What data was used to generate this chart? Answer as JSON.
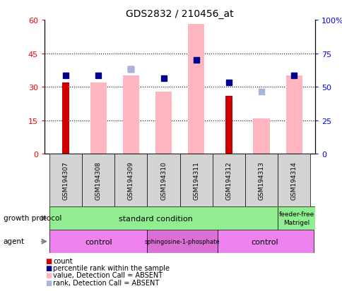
{
  "title": "GDS2832 / 210456_at",
  "samples": [
    "GSM194307",
    "GSM194308",
    "GSM194309",
    "GSM194310",
    "GSM194311",
    "GSM194312",
    "GSM194313",
    "GSM194314"
  ],
  "count_values": [
    32,
    null,
    null,
    null,
    null,
    26,
    null,
    null
  ],
  "pink_bar_values": [
    null,
    32,
    35,
    28,
    58,
    null,
    16,
    35
  ],
  "blue_square_values": [
    35,
    35,
    38,
    34,
    42,
    32,
    null,
    35
  ],
  "light_blue_square_values": [
    null,
    null,
    38,
    null,
    null,
    null,
    28,
    null
  ],
  "ylim_left": [
    0,
    60
  ],
  "ylim_right": [
    0,
    100
  ],
  "yticks_left": [
    0,
    15,
    30,
    45,
    60
  ],
  "yticks_right": [
    0,
    25,
    50,
    75,
    100
  ],
  "ytick_labels_left": [
    "0",
    "15",
    "30",
    "45",
    "60"
  ],
  "ytick_labels_right": [
    "0",
    "25",
    "50",
    "75",
    "100%"
  ],
  "count_color": "#cc0000",
  "pink_bar_color": "#ffb6c1",
  "blue_square_color": "#00008b",
  "light_blue_color": "#aab4d8",
  "sample_box_color": "#d3d3d3",
  "growth_std_color": "#90ee90",
  "agent_control_color": "#ee82ee",
  "agent_sphingo_color": "#da70d6",
  "legend_items": [
    {
      "color": "#cc0000",
      "label": "count"
    },
    {
      "color": "#00008b",
      "label": "percentile rank within the sample"
    },
    {
      "color": "#ffb6c1",
      "label": "value, Detection Call = ABSENT"
    },
    {
      "color": "#aab4d8",
      "label": "rank, Detection Call = ABSENT"
    }
  ]
}
